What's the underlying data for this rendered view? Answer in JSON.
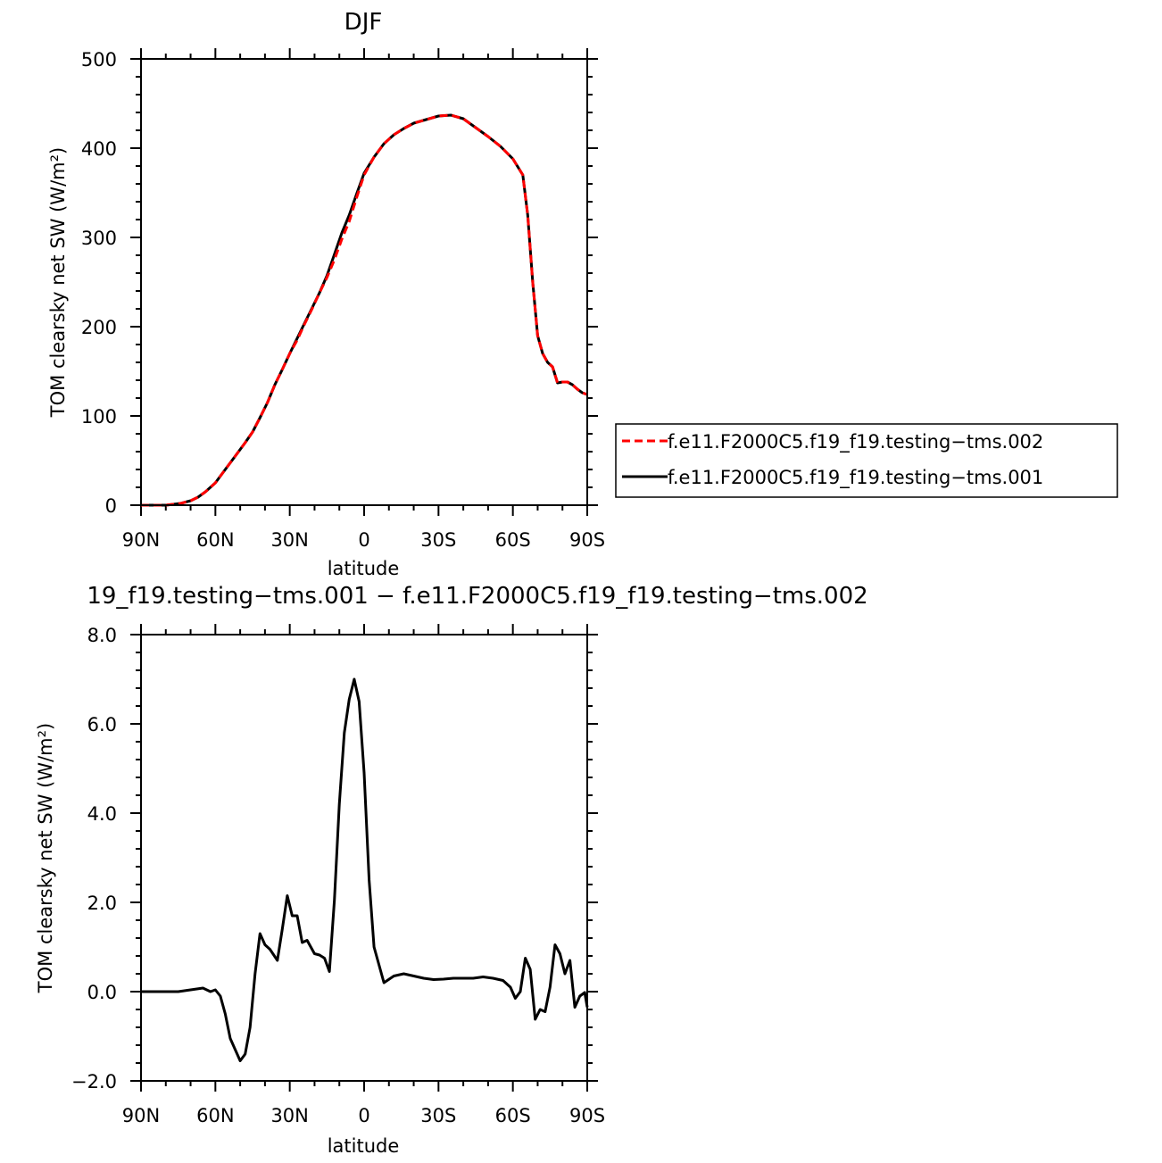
{
  "chart_data": [
    {
      "type": "line",
      "title": "DJF",
      "xlabel": "latitude",
      "ylabel": "TOM clearsky net SW (W/m²)",
      "xlim": [
        -90,
        90
      ],
      "ylim": [
        0,
        500
      ],
      "x_ticks": [
        -90,
        -60,
        -30,
        0,
        30,
        60,
        90
      ],
      "x_tick_labels": [
        "90N",
        "60N",
        "30N",
        "0",
        "30S",
        "60S",
        "90S"
      ],
      "y_ticks": [
        0,
        100,
        200,
        300,
        400,
        500
      ],
      "y_tick_labels": [
        "0",
        "100",
        "200",
        "300",
        "400",
        "500"
      ],
      "legend_position": "right",
      "series": [
        {
          "name": "f.e11.F2000C5.f19_f19.testing−tms.002",
          "color": "#ff0000",
          "dash": "dashed",
          "x": [
            -90,
            -80,
            -74,
            -70,
            -67,
            -64,
            -60,
            -56,
            -52,
            -48,
            -45,
            -42,
            -39,
            -36,
            -33,
            -30,
            -27,
            -24,
            -21,
            -18,
            -15,
            -12,
            -9,
            -6,
            -3,
            0,
            4,
            8,
            12,
            16,
            20,
            25,
            30,
            35,
            40,
            45,
            50,
            55,
            60,
            64,
            66,
            68,
            70,
            72,
            74,
            76,
            78,
            80,
            82,
            84,
            86,
            88,
            90
          ],
          "y": [
            0,
            0,
            2,
            5,
            9,
            15,
            25,
            40,
            55,
            70,
            82,
            98,
            115,
            135,
            152,
            170,
            185,
            203,
            220,
            238,
            255,
            275,
            298,
            318,
            345,
            370,
            390,
            405,
            415,
            422,
            428,
            432,
            436,
            437,
            433,
            423,
            413,
            402,
            388,
            370,
            325,
            250,
            190,
            170,
            160,
            155,
            137,
            138,
            138,
            135,
            130,
            126,
            124
          ]
        },
        {
          "name": "f.e11.F2000C5.f19_f19.testing−tms.001",
          "color": "#000000",
          "dash": "solid",
          "x": [
            -90,
            -80,
            -74,
            -70,
            -67,
            -64,
            -60,
            -56,
            -52,
            -48,
            -45,
            -42,
            -39,
            -36,
            -33,
            -30,
            -27,
            -24,
            -21,
            -18,
            -15,
            -12,
            -9,
            -6,
            -3,
            0,
            4,
            8,
            12,
            16,
            20,
            25,
            30,
            35,
            40,
            45,
            50,
            55,
            60,
            64,
            66,
            68,
            70,
            72,
            74,
            76,
            78,
            80,
            82,
            84,
            86,
            88,
            90
          ],
          "y": [
            0,
            0,
            2,
            5,
            9,
            15,
            25,
            40,
            55,
            70,
            82,
            98,
            115,
            135,
            152,
            170,
            187,
            204,
            221,
            238,
            257,
            281,
            305,
            325,
            349,
            372,
            390,
            405,
            415,
            422,
            428,
            432,
            436,
            437,
            433,
            423,
            413,
            402,
            388,
            370,
            325,
            250,
            190,
            170,
            160,
            155,
            137,
            138,
            138,
            135,
            130,
            126,
            124
          ]
        }
      ]
    },
    {
      "type": "line",
      "title": "19_f19.testing−tms.001 − f.e11.F2000C5.f19_f19.testing−tms.002",
      "xlabel": "latitude",
      "ylabel": "TOM clearsky net SW (W/m²)",
      "xlim": [
        -90,
        90
      ],
      "ylim": [
        -2,
        8
      ],
      "x_ticks": [
        -90,
        -60,
        -30,
        0,
        30,
        60,
        90
      ],
      "x_tick_labels": [
        "90N",
        "60N",
        "30N",
        "0",
        "30S",
        "60S",
        "90S"
      ],
      "y_ticks": [
        -2,
        0,
        2,
        4,
        6,
        8
      ],
      "y_tick_labels": [
        "−2.0",
        "0.0",
        "2.0",
        "4.0",
        "6.0",
        "8.0"
      ],
      "series": [
        {
          "color": "#000000",
          "dash": "solid",
          "x": [
            -90,
            -75,
            -65,
            -62,
            -60,
            -58,
            -56,
            -54,
            -50,
            -48,
            -46,
            -44,
            -42,
            -40,
            -38,
            -35,
            -33,
            -31,
            -29,
            -27,
            -25,
            -23,
            -20,
            -18,
            -16,
            -14,
            -12,
            -10,
            -8,
            -6,
            -4,
            -2,
            0,
            2,
            4,
            8,
            12,
            16,
            20,
            24,
            28,
            32,
            36,
            40,
            44,
            48,
            52,
            56,
            59,
            61,
            63,
            65,
            67,
            69,
            71,
            73,
            75,
            77,
            79,
            81,
            83,
            85,
            87,
            89,
            90
          ],
          "y": [
            0,
            0,
            0.08,
            0.0,
            0.04,
            -0.1,
            -0.5,
            -1.05,
            -1.55,
            -1.4,
            -0.8,
            0.4,
            1.3,
            1.05,
            0.95,
            0.7,
            1.4,
            2.15,
            1.7,
            1.7,
            1.1,
            1.15,
            0.85,
            0.82,
            0.75,
            0.45,
            2.05,
            4.2,
            5.8,
            6.55,
            7.0,
            6.5,
            4.9,
            2.5,
            1.0,
            0.2,
            0.35,
            0.4,
            0.35,
            0.3,
            0.27,
            0.28,
            0.3,
            0.3,
            0.3,
            0.33,
            0.3,
            0.25,
            0.1,
            -0.15,
            0.0,
            0.75,
            0.5,
            -0.62,
            -0.4,
            -0.45,
            0.1,
            1.05,
            0.85,
            0.4,
            0.7,
            -0.35,
            -0.1,
            -0.02,
            -0.35
          ]
        }
      ]
    }
  ]
}
